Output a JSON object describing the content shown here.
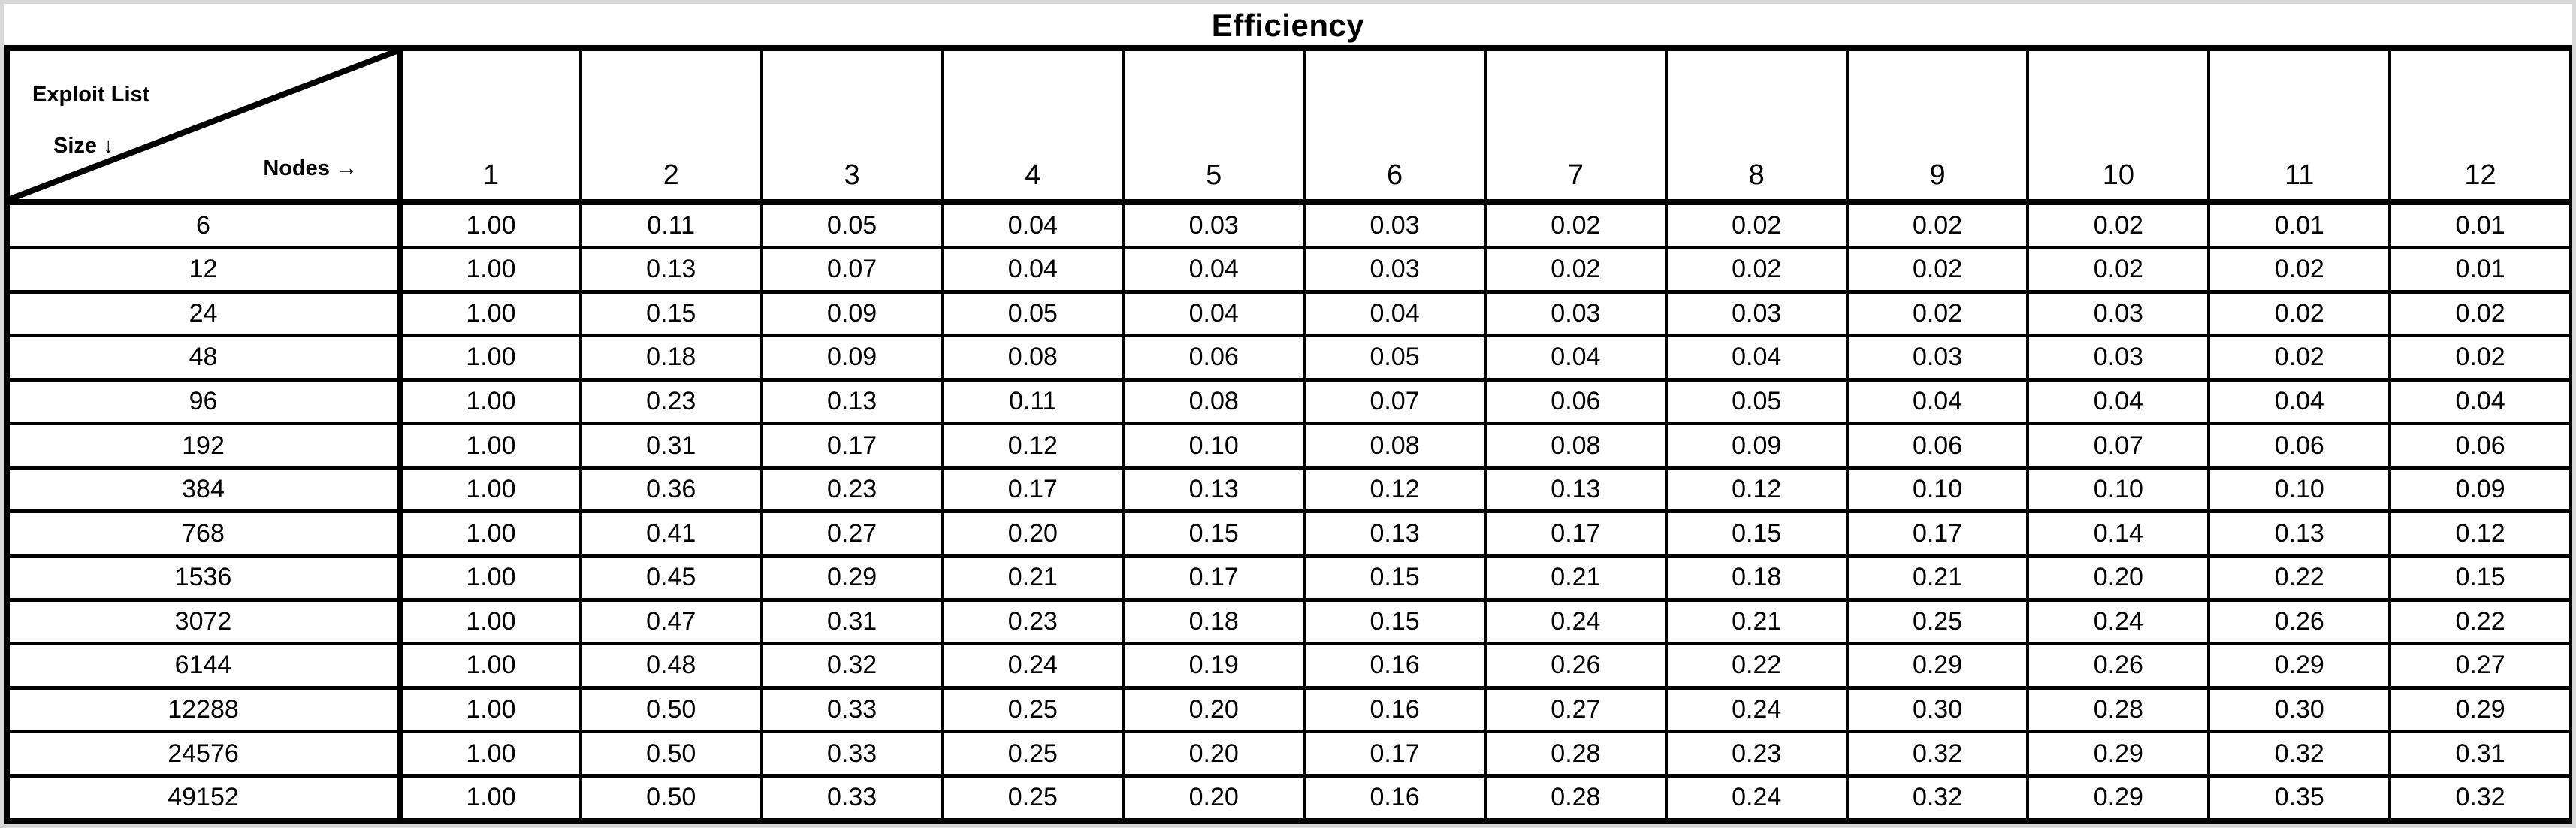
{
  "chart_data": {
    "type": "table",
    "title": "Efficiency",
    "corner": {
      "dataset_label": "Exploit List",
      "row_axis_label": "Size ↓",
      "col_axis_label": "Nodes →"
    },
    "col_header_name": "Nodes",
    "row_header_name": "Exploit List Size",
    "columns": [
      "1",
      "2",
      "3",
      "4",
      "5",
      "6",
      "7",
      "8",
      "9",
      "10",
      "11",
      "12"
    ],
    "rows": [
      {
        "size": "6",
        "values": [
          "1.00",
          "0.11",
          "0.05",
          "0.04",
          "0.03",
          "0.03",
          "0.02",
          "0.02",
          "0.02",
          "0.02",
          "0.01",
          "0.01"
        ]
      },
      {
        "size": "12",
        "values": [
          "1.00",
          "0.13",
          "0.07",
          "0.04",
          "0.04",
          "0.03",
          "0.02",
          "0.02",
          "0.02",
          "0.02",
          "0.02",
          "0.01"
        ]
      },
      {
        "size": "24",
        "values": [
          "1.00",
          "0.15",
          "0.09",
          "0.05",
          "0.04",
          "0.04",
          "0.03",
          "0.03",
          "0.02",
          "0.03",
          "0.02",
          "0.02"
        ]
      },
      {
        "size": "48",
        "values": [
          "1.00",
          "0.18",
          "0.09",
          "0.08",
          "0.06",
          "0.05",
          "0.04",
          "0.04",
          "0.03",
          "0.03",
          "0.02",
          "0.02"
        ]
      },
      {
        "size": "96",
        "values": [
          "1.00",
          "0.23",
          "0.13",
          "0.11",
          "0.08",
          "0.07",
          "0.06",
          "0.05",
          "0.04",
          "0.04",
          "0.04",
          "0.04"
        ]
      },
      {
        "size": "192",
        "values": [
          "1.00",
          "0.31",
          "0.17",
          "0.12",
          "0.10",
          "0.08",
          "0.08",
          "0.09",
          "0.06",
          "0.07",
          "0.06",
          "0.06"
        ]
      },
      {
        "size": "384",
        "values": [
          "1.00",
          "0.36",
          "0.23",
          "0.17",
          "0.13",
          "0.12",
          "0.13",
          "0.12",
          "0.10",
          "0.10",
          "0.10",
          "0.09"
        ]
      },
      {
        "size": "768",
        "values": [
          "1.00",
          "0.41",
          "0.27",
          "0.20",
          "0.15",
          "0.13",
          "0.17",
          "0.15",
          "0.17",
          "0.14",
          "0.13",
          "0.12"
        ]
      },
      {
        "size": "1536",
        "values": [
          "1.00",
          "0.45",
          "0.29",
          "0.21",
          "0.17",
          "0.15",
          "0.21",
          "0.18",
          "0.21",
          "0.20",
          "0.22",
          "0.15"
        ]
      },
      {
        "size": "3072",
        "values": [
          "1.00",
          "0.47",
          "0.31",
          "0.23",
          "0.18",
          "0.15",
          "0.24",
          "0.21",
          "0.25",
          "0.24",
          "0.26",
          "0.22"
        ]
      },
      {
        "size": "6144",
        "values": [
          "1.00",
          "0.48",
          "0.32",
          "0.24",
          "0.19",
          "0.16",
          "0.26",
          "0.22",
          "0.29",
          "0.26",
          "0.29",
          "0.27"
        ]
      },
      {
        "size": "12288",
        "values": [
          "1.00",
          "0.50",
          "0.33",
          "0.25",
          "0.20",
          "0.16",
          "0.27",
          "0.24",
          "0.30",
          "0.28",
          "0.30",
          "0.29"
        ]
      },
      {
        "size": "24576",
        "values": [
          "1.00",
          "0.50",
          "0.33",
          "0.25",
          "0.20",
          "0.17",
          "0.28",
          "0.23",
          "0.32",
          "0.29",
          "0.32",
          "0.31"
        ]
      },
      {
        "size": "49152",
        "values": [
          "1.00",
          "0.50",
          "0.33",
          "0.25",
          "0.20",
          "0.16",
          "0.28",
          "0.24",
          "0.32",
          "0.29",
          "0.35",
          "0.32"
        ]
      }
    ]
  },
  "colors": {
    "border": "#000000",
    "text": "#000000",
    "background": "#ffffff",
    "frame_edge": "#d9d9d9"
  }
}
